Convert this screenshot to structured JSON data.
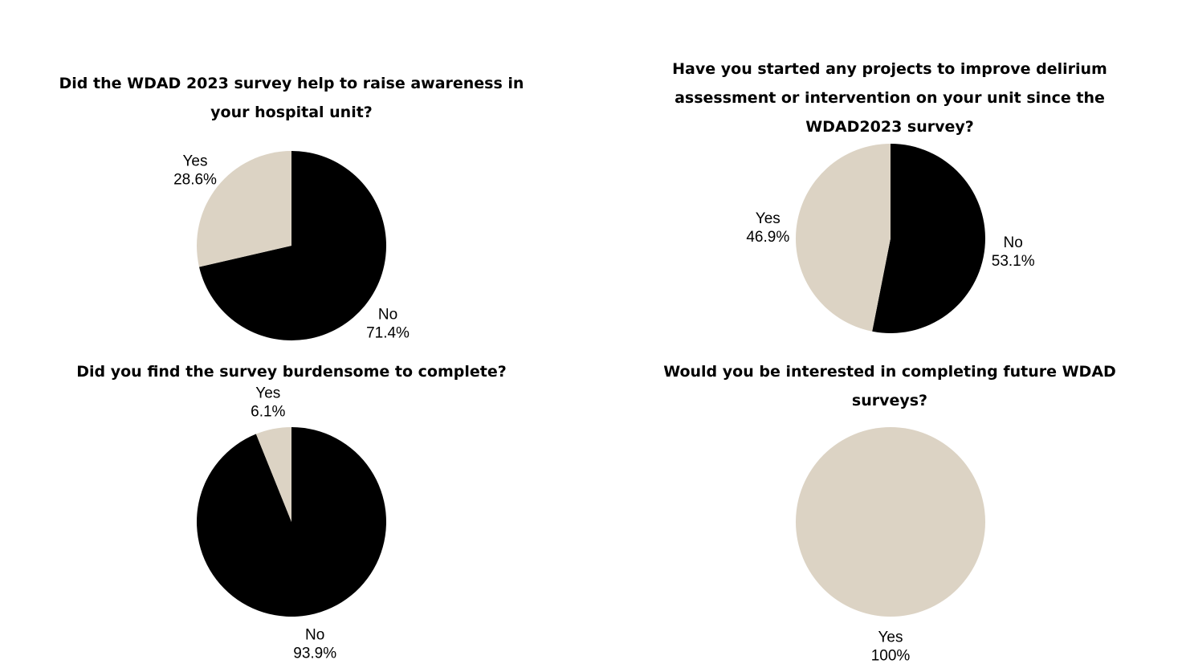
{
  "chart_data": [
    {
      "type": "pie",
      "title": "Did the WDAD 2023 survey help to raise awareness in\nyour hospital unit?",
      "slices": [
        {
          "label": "No",
          "value": 71.4,
          "value_label": "71.4%",
          "color": "#000000"
        },
        {
          "label": "Yes",
          "value": 28.6,
          "value_label": "28.6%",
          "color": "#dcd3c4"
        }
      ]
    },
    {
      "type": "pie",
      "title": "Have you started any projects to improve delirium\nassessment or intervention on your unit since the\nWDAD2023 survey?",
      "slices": [
        {
          "label": "No",
          "value": 53.1,
          "value_label": "53.1%",
          "color": "#000000"
        },
        {
          "label": "Yes",
          "value": 46.9,
          "value_label": "46.9%",
          "color": "#dcd3c4"
        }
      ]
    },
    {
      "type": "pie",
      "title": "Did you find the survey burdensome to complete?",
      "slices": [
        {
          "label": "No",
          "value": 93.9,
          "value_label": "93.9%",
          "color": "#000000"
        },
        {
          "label": "Yes",
          "value": 6.1,
          "value_label": "6.1%",
          "color": "#dcd3c4"
        }
      ]
    },
    {
      "type": "pie",
      "title": "Would you be interested in completing future WDAD surveys?",
      "slices": [
        {
          "label": "Yes",
          "value": 100,
          "value_label": "100%",
          "color": "#dcd3c4"
        }
      ]
    }
  ]
}
